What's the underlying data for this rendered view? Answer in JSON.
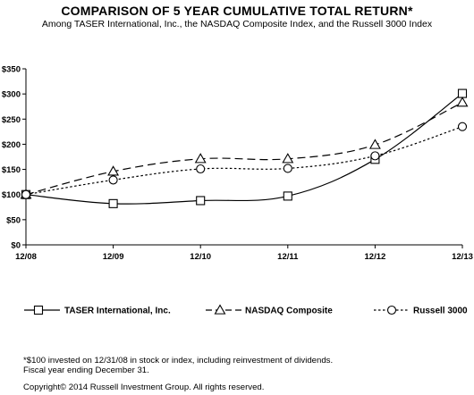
{
  "title": "COMPARISON OF 5 YEAR CUMULATIVE TOTAL RETURN*",
  "subtitle": "Among TASER International, Inc., the NASDAQ Composite Index, and the Russell 3000 Index",
  "chart_data": {
    "type": "line",
    "categories": [
      "12/08",
      "12/09",
      "12/10",
      "12/11",
      "12/12",
      "12/13"
    ],
    "yticks": [
      "$0",
      "$50",
      "$100",
      "$150",
      "$200",
      "$250",
      "$300",
      "$350"
    ],
    "ylim": [
      0,
      350
    ],
    "grid": false,
    "legend_position": "bottom",
    "series": [
      {
        "name": "TASER International, Inc.",
        "values": [
          100,
          82,
          88,
          97,
          170,
          301
        ],
        "marker": "square",
        "dash": "solid"
      },
      {
        "name": "NASDAQ Composite",
        "values": [
          100,
          146,
          171,
          171,
          199,
          283
        ],
        "marker": "triangle",
        "dash": "dashed"
      },
      {
        "name": "Russell 3000",
        "values": [
          100,
          129,
          151,
          152,
          177,
          235
        ],
        "marker": "circle",
        "dash": "dotted"
      }
    ]
  },
  "footnotes": {
    "line1": "*$100 invested on 12/31/08 in stock or index, including reinvestment of dividends.",
    "line2": "Fiscal year ending December 31.",
    "copyright": "Copyright© 2014 Russell Investment Group. All rights reserved."
  }
}
